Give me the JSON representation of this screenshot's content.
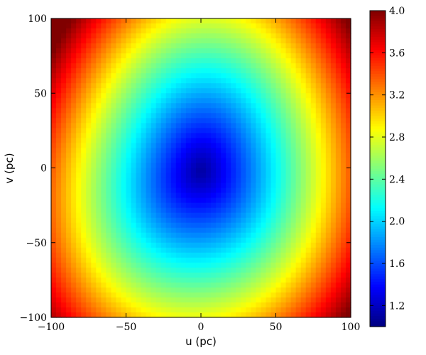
{
  "chart_data": {
    "type": "heatmap",
    "xlabel": "u (pc)",
    "ylabel": "v (pc)",
    "xlim": [
      -100,
      100
    ],
    "ylim": [
      -100,
      100
    ],
    "x_ticks": [
      -100,
      -50,
      0,
      50,
      100
    ],
    "y_ticks": [
      -100,
      -50,
      0,
      50,
      100
    ],
    "x_tick_labels": [
      "−100",
      "−50",
      "0",
      "50",
      "100"
    ],
    "y_tick_labels": [
      "−100",
      "−50",
      "0",
      "50",
      "100"
    ],
    "colormap": "jet",
    "colorbar": {
      "range": [
        1.0,
        4.0
      ],
      "ticks": [
        1.2,
        1.6,
        2.0,
        2.4,
        2.8,
        3.2,
        3.6,
        4.0
      ],
      "tick_labels": [
        "1.2",
        "1.6",
        "2.0",
        "2.4",
        "2.8",
        "3.2",
        "3.6",
        "4.0"
      ],
      "position": "right"
    },
    "field_model": {
      "description_values": "approximate radial profile: minimum near (0,0) rising to maximum at corners",
      "min_value": 1.1,
      "max_value": 4.0,
      "center_u": 0,
      "center_v": -2,
      "scale_u": 100,
      "scale_v": 115
    },
    "grid": false
  }
}
